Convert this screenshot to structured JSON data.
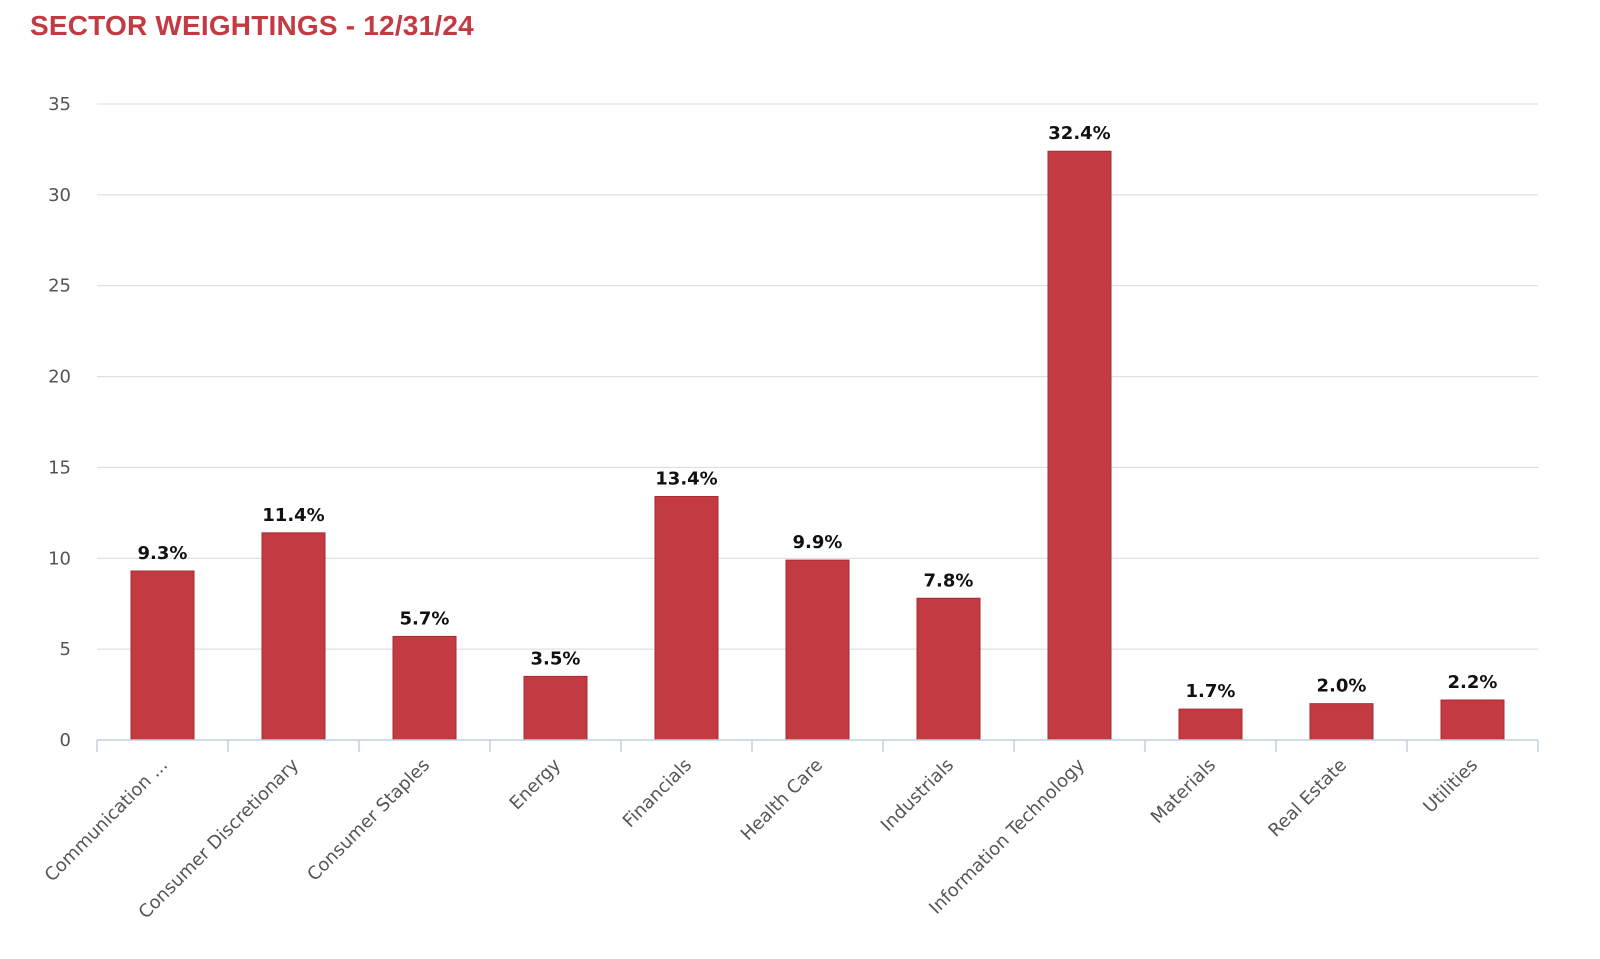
{
  "chart_data": {
    "type": "bar",
    "title": "SECTOR WEIGHTINGS - 12/31/24",
    "xlabel": "",
    "ylabel": "",
    "ylim": [
      0,
      35
    ],
    "yticks": [
      0,
      5,
      10,
      15,
      20,
      25,
      30,
      35
    ],
    "grid": true,
    "legend": "none",
    "bar_color": "#c43a42",
    "categories": [
      "Communication ...",
      "Consumer Discretionary",
      "Consumer Staples",
      "Energy",
      "Financials",
      "Health Care",
      "Industrials",
      "Information Technology",
      "Materials",
      "Real Estate",
      "Utilities"
    ],
    "values": [
      9.3,
      11.4,
      5.7,
      3.5,
      13.4,
      9.9,
      7.8,
      32.4,
      1.7,
      2.0,
      2.2
    ],
    "data_labels": [
      "9.3%",
      "11.4%",
      "5.7%",
      "3.5%",
      "13.4%",
      "9.9%",
      "7.8%",
      "32.4%",
      "1.7%",
      "2.0%",
      "2.2%"
    ]
  }
}
